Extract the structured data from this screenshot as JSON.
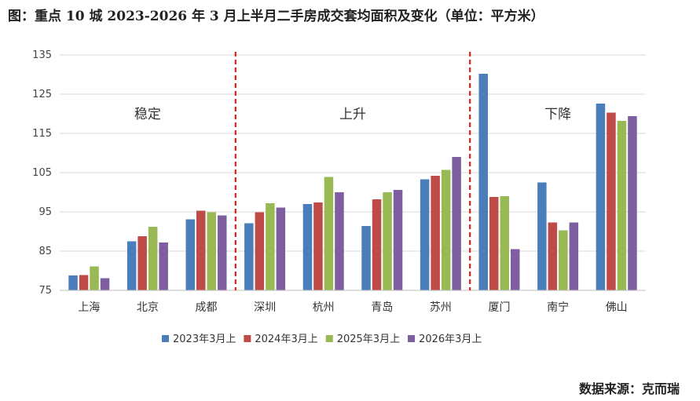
{
  "title": "图：重点 10 城 2023-2026 年 3 月上半月二手房成交套均面积及变化（单位：平方米）",
  "source": "数据来源：克而瑞",
  "chart_data": {
    "type": "bar",
    "categories": [
      "上海",
      "北京",
      "成都",
      "深圳",
      "杭州",
      "青岛",
      "苏州",
      "厦门",
      "南宁",
      "佛山"
    ],
    "series": [
      {
        "name": "2023年3月上",
        "color": "#4a7ebb",
        "values": [
          78.8,
          87.5,
          93.1,
          92.1,
          97.0,
          91.4,
          103.3,
          130.2,
          102.5,
          122.6
        ]
      },
      {
        "name": "2024年3月上",
        "color": "#be4b48",
        "values": [
          78.9,
          88.8,
          95.3,
          94.9,
          97.4,
          98.2,
          104.2,
          98.8,
          92.3,
          120.3
        ]
      },
      {
        "name": "2025年3月上",
        "color": "#98b954",
        "values": [
          81.1,
          91.2,
          94.9,
          97.2,
          103.9,
          100.0,
          105.7,
          99.0,
          90.3,
          118.2
        ]
      },
      {
        "name": "2026年3月上",
        "color": "#7d5fa0",
        "values": [
          78.1,
          87.2,
          94.1,
          96.1,
          100.0,
          100.6,
          109.0,
          85.5,
          92.3,
          119.4
        ]
      }
    ],
    "ylim": [
      75,
      135
    ],
    "yticks": [
      75,
      85,
      95,
      105,
      115,
      125,
      135
    ],
    "grid": true,
    "legend": "bottom",
    "dividers_after": [
      "成都",
      "苏州"
    ],
    "annotations": [
      {
        "text": "稳定",
        "over": [
          "上海",
          "北京",
          "成都"
        ]
      },
      {
        "text": "上升",
        "over": [
          "深圳",
          "杭州",
          "青岛",
          "苏州"
        ]
      },
      {
        "text": "下降",
        "over": [
          "厦门",
          "南宁",
          "佛山"
        ]
      }
    ]
  }
}
